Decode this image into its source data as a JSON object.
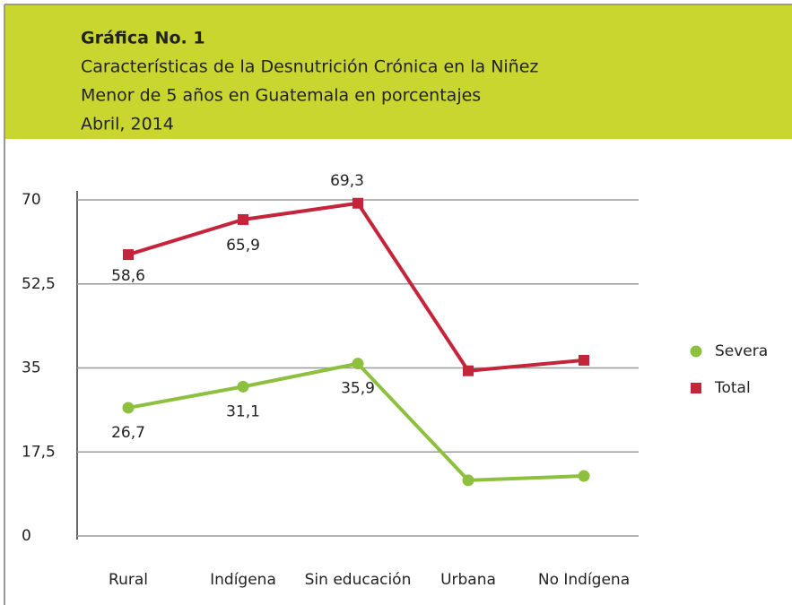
{
  "chart_data": {
    "type": "line",
    "title": "Gráfica No. 1",
    "subtitle": [
      "Características de la Desnutrición Crónica en la Niñez",
      "Menor de 5 años en Guatemala en porcentajes",
      "Abril, 2014"
    ],
    "categories": [
      "Rural",
      "Indígena",
      "Sin educación",
      "Urbana",
      "No Indígena"
    ],
    "series": [
      {
        "name": "Severa",
        "color": "#8dc03f",
        "marker": "circle",
        "values": [
          26.7,
          31.1,
          35.9,
          11.6,
          12.5
        ],
        "value_labels": [
          "26,7",
          "31,1",
          "35,9",
          null,
          null
        ]
      },
      {
        "name": "Total",
        "color": "#c4253a",
        "marker": "square",
        "values": [
          58.6,
          65.9,
          69.3,
          34.4,
          36.6
        ],
        "value_labels": [
          "58,6",
          "65,9",
          "69,3",
          null,
          null
        ]
      }
    ],
    "ylim": [
      0,
      70
    ],
    "yticks": [
      0,
      {
        "value": 17.5,
        "label": "17,5"
      },
      35,
      {
        "value": 52.5,
        "label": "52,5"
      },
      70
    ],
    "grid": true,
    "legend": "right"
  }
}
